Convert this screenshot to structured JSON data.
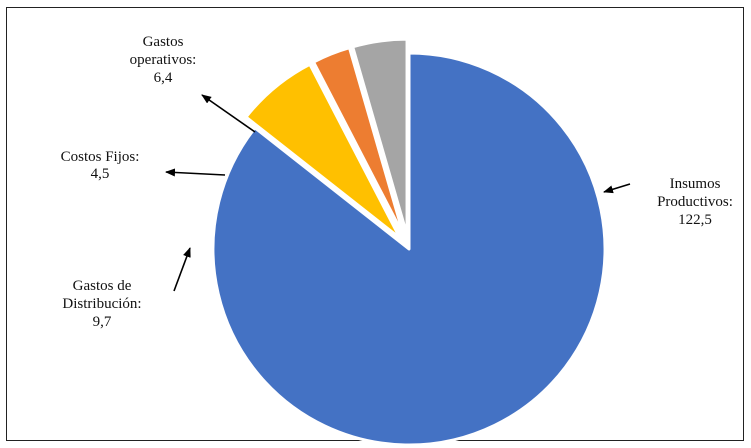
{
  "chart_data": {
    "type": "pie",
    "title": "",
    "slices": [
      {
        "name": "Insumos Productivos",
        "value": 122.5,
        "display": "122,5",
        "color": "#4472C4",
        "label_lines": [
          "Insumos",
          "Productivos:",
          "122,5"
        ]
      },
      {
        "name": "Gastos de Distribución",
        "value": 9.7,
        "display": "9,7",
        "color": "#FFC000",
        "label_lines": [
          "Gastos de",
          "Distribución:",
          "9,7"
        ]
      },
      {
        "name": "Costos Fijos",
        "value": 4.5,
        "display": "4,5",
        "color": "#ED7D31",
        "label_lines": [
          "Costos Fijos:",
          "4,5"
        ]
      },
      {
        "name": "Gastos operativos",
        "value": 6.4,
        "display": "6,4",
        "color": "#A5A5A5",
        "label_lines": [
          "Gastos",
          "operativos:",
          "6,4"
        ]
      }
    ],
    "start_angle_deg": 90,
    "exploded": [
      "Gastos de Distribución",
      "Costos Fijos",
      "Gastos operativos"
    ],
    "legend": "none",
    "slice_border_color": "#FFFFFF"
  }
}
